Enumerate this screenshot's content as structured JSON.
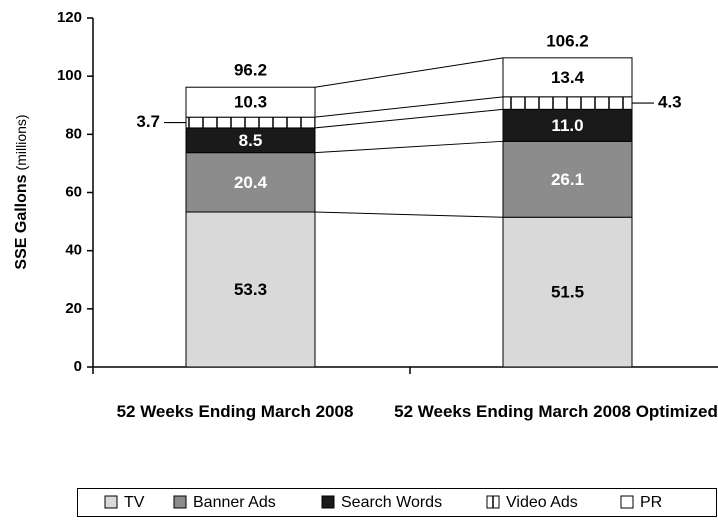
{
  "chart_data": {
    "type": "stacked_bar",
    "y_label": "SSE Gallons",
    "y_label_unit": "(millions)",
    "categories": [
      "52 Weeks Ending March 2008",
      "52 Weeks Ending March 2008 Optimized"
    ],
    "series": [
      {
        "name": "TV",
        "color": "#d9d9d9",
        "values": [
          53.3,
          51.5
        ]
      },
      {
        "name": "Banner Ads",
        "color": "#8c8c8c",
        "values": [
          20.4,
          26.1
        ]
      },
      {
        "name": "Search Words",
        "color": "#1a1a1a",
        "values": [
          8.5,
          11.0
        ],
        "value_labels": [
          "8.5",
          "11.0"
        ]
      },
      {
        "name": "Video Ads",
        "color": "#ffffff",
        "pattern": "vertical-hatch",
        "label_position": "outside",
        "values": [
          3.7,
          4.3
        ]
      },
      {
        "name": "PR",
        "color": "#ffffff",
        "values": [
          10.3,
          13.4
        ]
      }
    ],
    "totals": [
      96.2,
      106.2
    ],
    "ylim": [
      0,
      120
    ],
    "yticks": [
      0,
      20,
      40,
      60,
      80,
      100,
      120
    ],
    "grid": false,
    "legend": "bottom"
  }
}
